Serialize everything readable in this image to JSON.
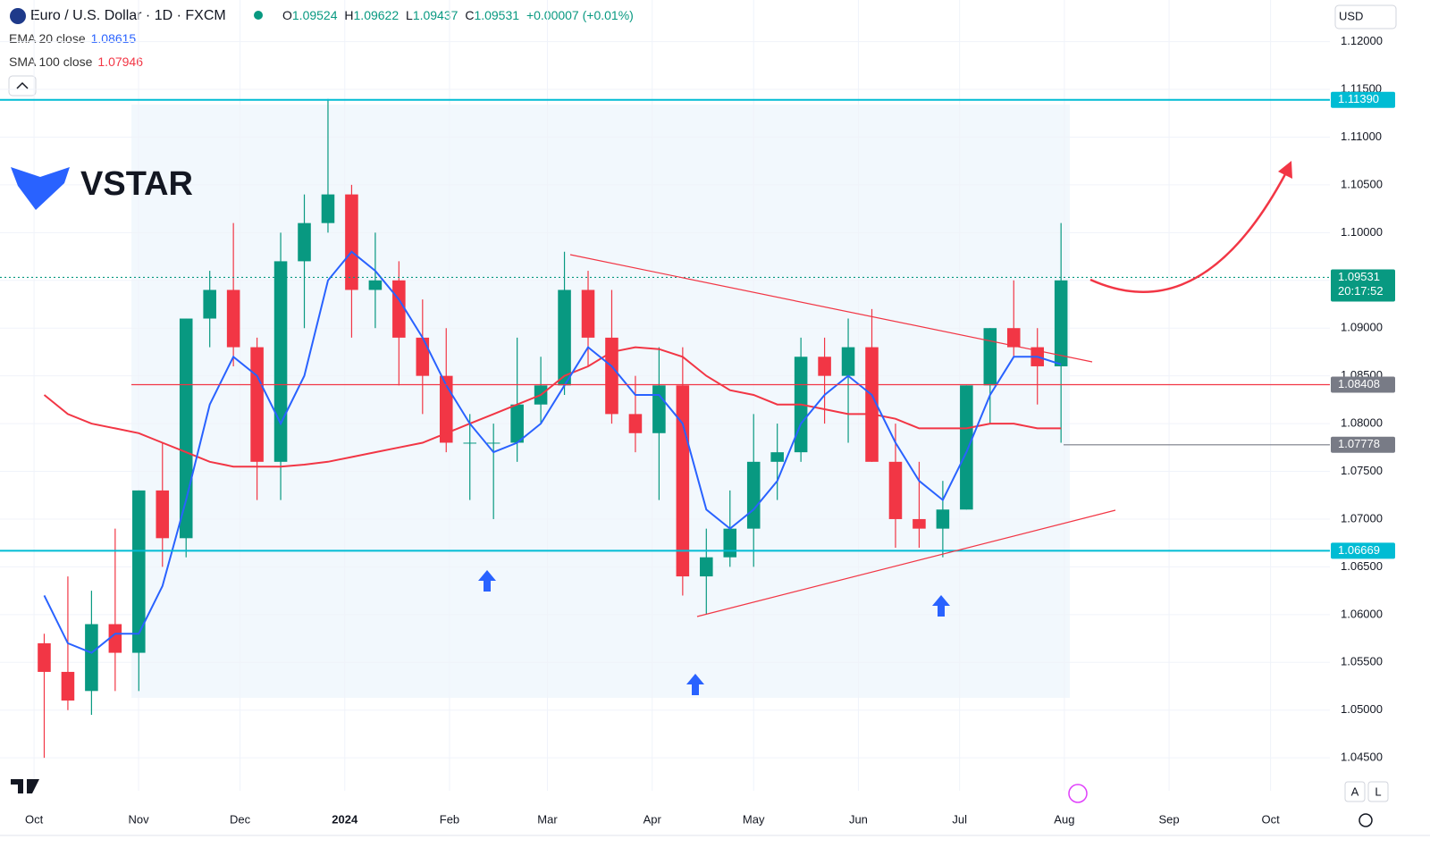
{
  "chart_data": {
    "type": "candlestick",
    "title": "Euro / U.S. Dollar · 1D · FXCM",
    "ohlc": [
      {
        "label": "O",
        "value": 1.09524
      },
      {
        "label": "H",
        "value": 1.09622
      },
      {
        "label": "L",
        "value": 1.09437
      },
      {
        "label": "C",
        "value": 1.09531
      }
    ],
    "change": "+0.00007 (+0.01%)",
    "currency": "USD",
    "logo": "VSTAR",
    "indicators": [
      {
        "name": "EMA 20 close",
        "value": 1.08615,
        "color": "#2962ff"
      },
      {
        "name": "SMA 100 close",
        "value": 1.07946,
        "color": "#f23645"
      }
    ],
    "up_color": "#089981",
    "down_color": "#f23645",
    "open": [
      1.057,
      1.054,
      1.052,
      1.059,
      1.056,
      1.073,
      1.068,
      1.091,
      1.094,
      1.088,
      1.076,
      1.097,
      1.101,
      1.104,
      1.094,
      1.095,
      1.089,
      1.085,
      1.078,
      1.078,
      1.078,
      1.082,
      1.084,
      1.094,
      1.089,
      1.081,
      1.079,
      1.084,
      1.064,
      1.066,
      1.069,
      1.076,
      1.077,
      1.087,
      1.085,
      1.088,
      1.076,
      1.07,
      1.069,
      1.071,
      1.084,
      1.09,
      1.088,
      1.086
    ],
    "high": [
      1.058,
      1.064,
      1.0625,
      1.069,
      1.073,
      1.078,
      1.091,
      1.096,
      1.101,
      1.089,
      1.1,
      1.104,
      1.114,
      1.105,
      1.1,
      1.097,
      1.093,
      1.09,
      1.081,
      1.08,
      1.089,
      1.087,
      1.098,
      1.096,
      1.094,
      1.085,
      1.088,
      1.088,
      1.069,
      1.073,
      1.081,
      1.08,
      1.089,
      1.089,
      1.091,
      1.092,
      1.08,
      1.076,
      1.074,
      1.084,
      1.09,
      1.095,
      1.09,
      1.101
    ],
    "low": [
      1.045,
      1.05,
      1.0495,
      1.052,
      1.052,
      1.065,
      1.066,
      1.088,
      1.086,
      1.072,
      1.072,
      1.09,
      1.1,
      1.089,
      1.09,
      1.084,
      1.081,
      1.077,
      1.072,
      1.07,
      1.076,
      1.08,
      1.083,
      1.086,
      1.08,
      1.077,
      1.072,
      1.062,
      1.06,
      1.065,
      1.065,
      1.072,
      1.076,
      1.08,
      1.078,
      1.076,
      1.067,
      1.067,
      1.066,
      1.071,
      1.08,
      1.087,
      1.082,
      1.078
    ],
    "close": [
      1.054,
      1.051,
      1.059,
      1.056,
      1.073,
      1.068,
      1.091,
      1.094,
      1.088,
      1.076,
      1.097,
      1.101,
      1.104,
      1.094,
      1.095,
      1.089,
      1.085,
      1.078,
      1.078,
      1.078,
      1.082,
      1.084,
      1.094,
      1.089,
      1.081,
      1.079,
      1.084,
      1.064,
      1.066,
      1.069,
      1.076,
      1.077,
      1.087,
      1.085,
      1.088,
      1.076,
      1.07,
      1.069,
      1.071,
      1.084,
      1.09,
      1.088,
      1.086,
      1.095
    ],
    "ema": [
      1.062,
      1.057,
      1.056,
      1.058,
      1.058,
      1.063,
      1.072,
      1.082,
      1.087,
      1.085,
      1.08,
      1.085,
      1.095,
      1.098,
      1.096,
      1.093,
      1.089,
      1.084,
      1.08,
      1.077,
      1.078,
      1.08,
      1.084,
      1.088,
      1.086,
      1.083,
      1.083,
      1.08,
      1.071,
      1.069,
      1.071,
      1.074,
      1.08,
      1.083,
      1.085,
      1.083,
      1.078,
      1.074,
      1.072,
      1.077,
      1.083,
      1.087,
      1.087,
      1.0862
    ],
    "sma": [
      1.083,
      1.081,
      1.08,
      1.0795,
      1.079,
      1.078,
      1.077,
      1.076,
      1.0755,
      1.0755,
      1.0755,
      1.0757,
      1.076,
      1.0765,
      1.077,
      1.0775,
      1.078,
      1.079,
      1.08,
      1.081,
      1.082,
      1.083,
      1.085,
      1.086,
      1.0875,
      1.088,
      1.0878,
      1.087,
      1.085,
      1.0835,
      1.083,
      1.082,
      1.082,
      1.0815,
      1.081,
      1.081,
      1.0805,
      1.0795,
      1.0795,
      1.0795,
      1.08,
      1.08,
      1.0795,
      1.0795
    ],
    "xlim": [
      -1.87,
      54.37
    ],
    "xticks": [
      {
        "value": -0.43,
        "label": "Oct"
      },
      {
        "value": 3.99,
        "label": "Nov"
      },
      {
        "value": 8.28,
        "label": "Dec"
      },
      {
        "value": 12.71,
        "label": "2024"
      },
      {
        "value": 17.14,
        "label": "Feb"
      },
      {
        "value": 21.28,
        "label": "Mar"
      },
      {
        "value": 25.71,
        "label": "Apr"
      },
      {
        "value": 30.0,
        "label": "May"
      },
      {
        "value": 34.43,
        "label": "Jun"
      },
      {
        "value": 38.71,
        "label": "Jul"
      },
      {
        "value": 43.14,
        "label": "Aug"
      },
      {
        "value": 47.57,
        "label": "Sep"
      },
      {
        "value": 51.86,
        "label": "Oct"
      }
    ],
    "ylim": [
      1.04155,
      1.12436
    ],
    "yticks": [
      {
        "value": 1.045,
        "label": "1.04500"
      },
      {
        "value": 1.05,
        "label": "1.05000"
      },
      {
        "value": 1.055,
        "label": "1.05500"
      },
      {
        "value": 1.06,
        "label": "1.06000"
      },
      {
        "value": 1.065,
        "label": "1.06500"
      },
      {
        "value": 1.07,
        "label": "1.07000"
      },
      {
        "value": 1.075,
        "label": "1.07500"
      },
      {
        "value": 1.08,
        "label": "1.08000"
      },
      {
        "value": 1.085,
        "label": "1.08500"
      },
      {
        "value": 1.09,
        "label": "1.09000"
      },
      {
        "value": 1.095,
        "label": "1.09500"
      },
      {
        "value": 1.1,
        "label": "1.10000"
      },
      {
        "value": 1.105,
        "label": "1.10500"
      },
      {
        "value": 1.11,
        "label": "1.11000"
      },
      {
        "value": 1.115,
        "label": "1.11500"
      },
      {
        "value": 1.12,
        "label": "1.12000"
      }
    ],
    "levels": [
      {
        "value": 1.1139,
        "label": "1.11390",
        "color": "#00bcd4"
      },
      {
        "value": 1.09531,
        "label": "1.09531",
        "color": "#089981"
      },
      {
        "value": 1.08408,
        "label": "1.08408",
        "color": "#f23645"
      },
      {
        "value": 1.07778,
        "label": "1.07778",
        "color": "#787b86"
      },
      {
        "value": 1.06669,
        "label": "1.06669",
        "color": "#00bcd4"
      }
    ],
    "countdown": "20:17:52",
    "axis_buttons": [
      "A",
      "L"
    ]
  }
}
